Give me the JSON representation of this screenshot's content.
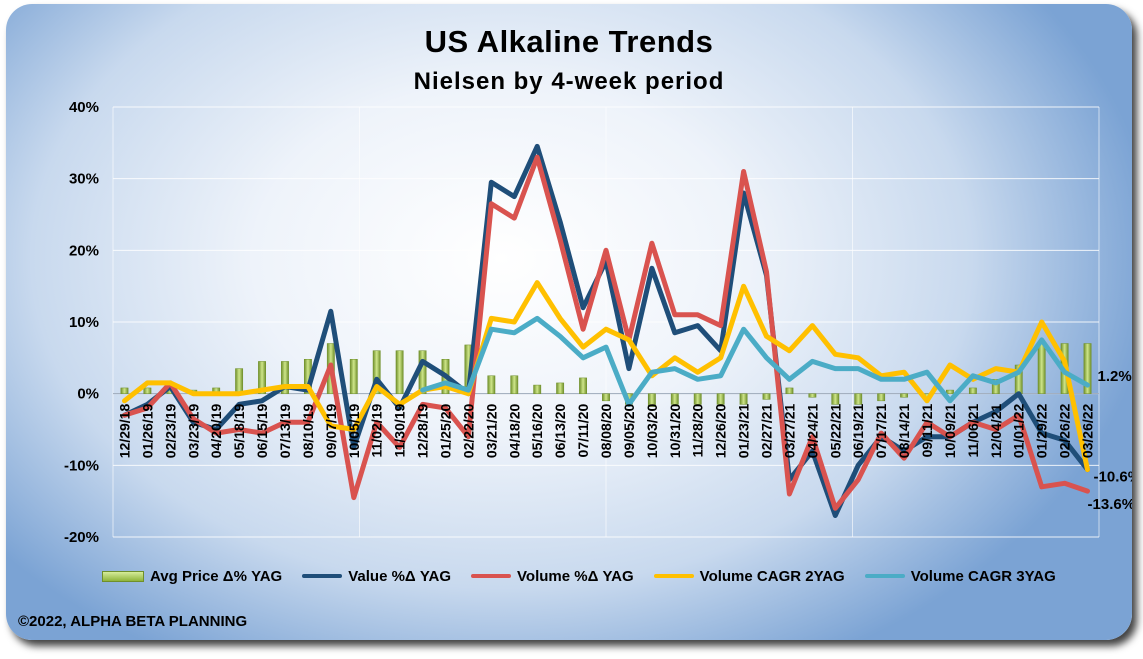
{
  "title": "US Alkaline Trends",
  "subtitle": "Nielsen by 4-week period",
  "copyright": "©2022, ALPHA BETA PLANNING",
  "colors": {
    "avg_price": "#9bbb59",
    "value": "#1f4e79",
    "volume": "#d9534f",
    "cagr2": "#ffc000",
    "cagr3": "#4bacc6"
  },
  "chart_data": {
    "type": "line",
    "ylim": [
      -20,
      40
    ],
    "yticks": [
      "-20%",
      "-10%",
      "0%",
      "10%",
      "20%",
      "30%",
      "40%"
    ],
    "ytick_values": [
      -20,
      -10,
      0,
      10,
      20,
      30,
      40
    ],
    "tick_labels": [
      "12/29/18",
      "01/26/19",
      "02/23/19",
      "03/23/19",
      "04/20/19",
      "05/18/19",
      "06/15/19",
      "07/13/19",
      "08/10/19",
      "09/07/19",
      "10/05/19",
      "11/02/19",
      "11/30/19",
      "12/28/19",
      "01/25/20",
      "02/22/20",
      "03/21/20",
      "04/18/20",
      "05/16/20",
      "06/13/20",
      "07/11/20",
      "08/08/20",
      "09/05/20",
      "10/03/20",
      "10/31/20",
      "11/28/20",
      "12/26/20",
      "01/23/21",
      "02/27/21",
      "03/27/21",
      "04/24/21",
      "05/22/21",
      "06/19/21",
      "07/17/21",
      "08/14/21",
      "09/11/21",
      "10/09/21",
      "11/06/21",
      "12/04/21",
      "01/01/22",
      "01/29/22",
      "02/26/22",
      "03/26/22"
    ],
    "n_points": 43,
    "series": [
      {
        "name": "Avg Price Δ% YAG",
        "kind": "bar",
        "color": "#9bbb59",
        "values": [
          0.8,
          0.8,
          1.5,
          0.5,
          0.8,
          3.5,
          4.5,
          4.5,
          4.8,
          7.0,
          4.8,
          6.0,
          6.0,
          6.0,
          4.8,
          6.8,
          2.5,
          2.5,
          1.2,
          1.5,
          2.2,
          -1.0,
          -1.5,
          -1.8,
          -1.5,
          -1.5,
          -1.5,
          -1.5,
          -0.8,
          0.8,
          -0.5,
          -1.5,
          -1.5,
          -1.0,
          -0.5,
          -0.5,
          0.5,
          0.8,
          2.0,
          4.0,
          7.0,
          7.0,
          7.0
        ]
      },
      {
        "name": "Value %Δ YAG",
        "kind": "line",
        "color": "#1f4e79",
        "values": [
          -3.0,
          -1.5,
          1.0,
          -4.0,
          -5.0,
          -1.5,
          -1.0,
          1.0,
          0.5,
          11.5,
          -7.5,
          2.0,
          -2.0,
          4.5,
          2.5,
          0.0,
          29.5,
          27.5,
          34.5,
          24.0,
          12.0,
          18.5,
          3.5,
          17.5,
          8.5,
          9.5,
          6.0,
          28.0,
          16.5,
          -12.0,
          -8.0,
          -17.0,
          -10.0,
          -6.0,
          -8.0,
          -6.0,
          -6.0,
          -4.0,
          -2.5,
          0.0,
          -5.5,
          -6.5,
          -10.6
        ]
      },
      {
        "name": "Volume %Δ YAG",
        "kind": "line",
        "color": "#d9534f",
        "values": [
          -3.0,
          -2.0,
          1.5,
          -3.5,
          -5.5,
          -5.0,
          -5.5,
          -4.0,
          -4.0,
          4.0,
          -14.5,
          -4.0,
          -7.5,
          -1.5,
          -2.0,
          -6.0,
          26.5,
          24.5,
          33.0,
          21.5,
          9.0,
          20.0,
          7.5,
          21.0,
          11.0,
          11.0,
          9.5,
          31.0,
          17.0,
          -14.0,
          -6.0,
          -16.0,
          -12.0,
          -5.5,
          -9.0,
          -4.0,
          -6.0,
          -4.0,
          -5.0,
          -3.0,
          -13.0,
          -12.5,
          -13.6
        ]
      },
      {
        "name": "Volume CAGR 2YAG",
        "kind": "line",
        "color": "#ffc000",
        "values": [
          -1.0,
          1.5,
          1.5,
          0.0,
          0.0,
          0.0,
          0.5,
          1.0,
          1.0,
          -4.5,
          -5.0,
          1.0,
          -1.5,
          0.5,
          1.0,
          0.0,
          10.5,
          10.0,
          15.5,
          10.5,
          6.5,
          9.0,
          7.5,
          2.5,
          5.0,
          3.0,
          5.0,
          15.0,
          8.0,
          6.0,
          9.5,
          5.5,
          5.0,
          2.5,
          3.0,
          -1.0,
          4.0,
          2.0,
          3.5,
          3.0,
          10.0,
          4.5,
          -10.6
        ]
      },
      {
        "name": "Volume CAGR 3YAG",
        "kind": "line",
        "color": "#4bacc6",
        "values": [
          null,
          null,
          null,
          null,
          null,
          null,
          null,
          null,
          null,
          null,
          null,
          null,
          null,
          0.5,
          1.5,
          0.5,
          9.0,
          8.5,
          10.5,
          8.0,
          5.0,
          6.5,
          -1.5,
          3.0,
          3.5,
          2.0,
          2.5,
          9.0,
          5.0,
          2.0,
          4.5,
          3.5,
          3.5,
          2.0,
          2.0,
          3.0,
          -1.0,
          2.5,
          1.5,
          3.0,
          7.5,
          3.0,
          1.2
        ]
      }
    ],
    "data_labels": [
      "1.2%",
      "-10.6%",
      "-13.6%"
    ],
    "grid": true,
    "legend": "bottom"
  }
}
